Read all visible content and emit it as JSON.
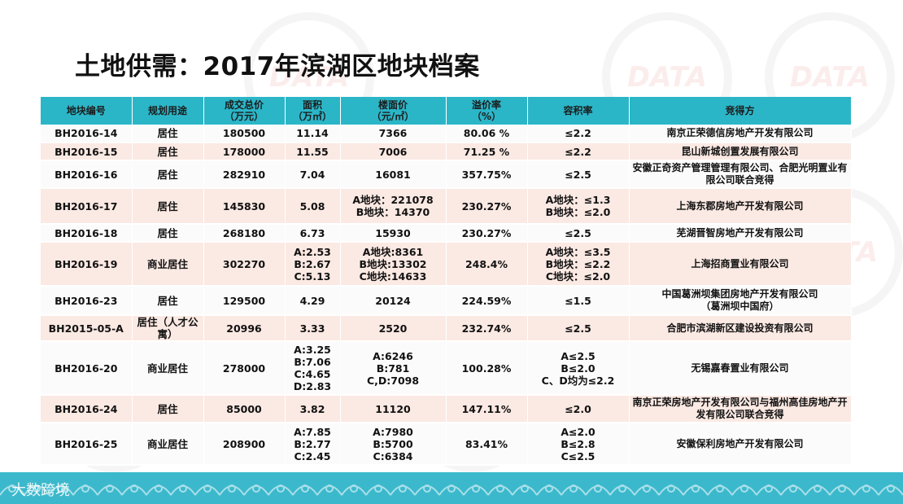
{
  "title": "土地供需：2017年滨湖区地块档案",
  "headers": [
    "地块编号",
    "规划用途",
    "成交总价\n（万元）",
    "面积\n（万㎡）",
    "楼面价\n（元/㎡）",
    "溢价率\n（%）",
    "容积率",
    "竞得方"
  ],
  "rows": [
    [
      "BH2016-14",
      "居住",
      "180500",
      "11.14",
      "7366",
      "80.06 %",
      "≤2.2",
      "南京正荣德信房地产开发有限公司"
    ],
    [
      "BH2016-15",
      "居住",
      "178000",
      "11.55",
      "7006",
      "71.25 %",
      "≤2.2",
      "昆山新城创置发展有限公司"
    ],
    [
      "BH2016-16",
      "居住",
      "282910",
      "7.04",
      "16081",
      "357.75%",
      "≤2.5",
      "安徽正奇资产管理管理有限公司、合肥光明置业有限公司联合竞得"
    ],
    [
      "BH2016-17",
      "居住",
      "145830",
      "5.08",
      "A地块：221078\nB地块：14370",
      "230.27%",
      "A地块：≤1.3\nB地块：≤2.0",
      "上海东郡房地产开发有限公司"
    ],
    [
      "BH2016-18",
      "居住",
      "268180",
      "6.73",
      "15930",
      "230.27%",
      "≤2.5",
      "芜湖晋智房地产开发有限公司"
    ],
    [
      "BH2016-19",
      "商业居住",
      "302270",
      "A:2.53\nB:2.67\nC:5.13",
      "A地块:8361\nB地块:13302\nC地块:14633",
      "248.4%",
      "A地块：≤3.5\nB地块：≤2.2\nC地块：≤2.0",
      "上海招商置业有限公司"
    ],
    [
      "BH2016-23",
      "居住",
      "129500",
      "4.29",
      "20124",
      "224.59%",
      "≤1.5",
      "中国葛洲坝集团房地产开发有限公司\n（葛洲坝中国府）"
    ],
    [
      "BH2015-05-A",
      "居住（人才公寓）",
      "20996",
      "3.33",
      "2520",
      "232.74%",
      "≤2.5",
      "合肥市滨湖新区建设投资有限公司"
    ],
    [
      "BH2016-20",
      "商业居住",
      "278000",
      "A:3.25\nB:7.06\nC:4.65\nD:2.83",
      "A:6246\nB:781\nC,D:7098",
      "100.28%",
      "A≤2.5\nB≤2.0\nC、D均为≤2.2",
      "无锡嘉春置业有限公司"
    ],
    [
      "BH2016-24",
      "居住",
      "85000",
      "3.82",
      "11120",
      "147.11%",
      "≤2.0",
      "南京正荣房地产开发有限公司与福州高佳房地产开发有限公司联合竞得"
    ],
    [
      "BH2016-25",
      "商业居住",
      "208900",
      "A:7.85\nB:2.77\nC:2.45",
      "A:7980\nB:5700\nC:6384",
      "83.41%",
      "A≤2.0\nB≤2.8\nC≤2.5",
      "安徽保利房地产开发有限公司"
    ]
  ],
  "watermark_text": "DATA",
  "footer_brand": "大数跨境",
  "colors": {
    "header_bg": "#2bb6c8",
    "row_alt": "#fbe9e3",
    "footer": "#3bb8cc"
  }
}
